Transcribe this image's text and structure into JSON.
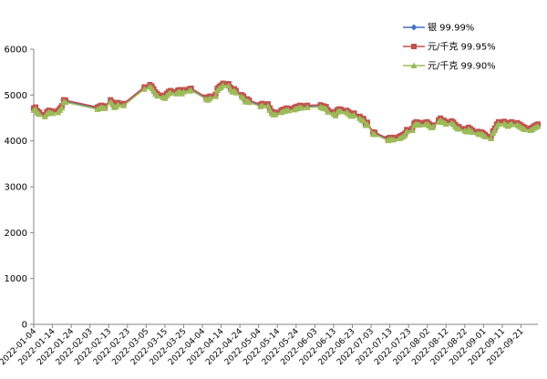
{
  "chart_data": {
    "type": "line",
    "ylim": [
      0,
      6000
    ],
    "y_ticks": [
      0,
      1000,
      2000,
      3000,
      4000,
      5000,
      6000
    ],
    "x_tick_labels": [
      "2022-01-04",
      "2022-01-14",
      "2022-01-24",
      "2022-02-03",
      "2022-02-13",
      "2022-02-23",
      "2022-03-05",
      "2022-03-15",
      "2022-03-25",
      "2022-04-04",
      "2022-04-14",
      "2022-04-24",
      "2022-05-04",
      "2022-05-14",
      "2022-05-24",
      "2022-06-03",
      "2022-06-13",
      "2022-06-23",
      "2022-07-03",
      "2022-07-13",
      "2022-07-23",
      "2022-08-02",
      "2022-08-12",
      "2022-08-22",
      "2022-09-01",
      "2022-09-11",
      "2022-09-21"
    ],
    "grid": false,
    "legend_position": "top-right",
    "x_start": "2022-01-04",
    "x_end": "2022-09-30",
    "points": [
      [
        "2022-01-04",
        4700
      ],
      [
        "2022-01-05",
        4720
      ],
      [
        "2022-01-06",
        4640
      ],
      [
        "2022-01-07",
        4610
      ],
      [
        "2022-01-10",
        4560
      ],
      [
        "2022-01-11",
        4620
      ],
      [
        "2022-01-12",
        4650
      ],
      [
        "2022-01-13",
        4640
      ],
      [
        "2022-01-14",
        4630
      ],
      [
        "2022-01-17",
        4650
      ],
      [
        "2022-01-18",
        4700
      ],
      [
        "2022-01-19",
        4750
      ],
      [
        "2022-01-20",
        4880
      ],
      [
        "2022-01-21",
        4870
      ],
      [
        "2022-02-07",
        4720
      ],
      [
        "2022-02-08",
        4740
      ],
      [
        "2022-02-09",
        4760
      ],
      [
        "2022-02-10",
        4750
      ],
      [
        "2022-02-11",
        4740
      ],
      [
        "2022-02-14",
        4880
      ],
      [
        "2022-02-15",
        4830
      ],
      [
        "2022-02-16",
        4760
      ],
      [
        "2022-02-17",
        4780
      ],
      [
        "2022-02-18",
        4820
      ],
      [
        "2022-02-21",
        4800
      ],
      [
        "2022-03-04",
        5160
      ],
      [
        "2022-03-07",
        5210
      ],
      [
        "2022-03-08",
        5180
      ],
      [
        "2022-03-09",
        5120
      ],
      [
        "2022-03-10",
        5050
      ],
      [
        "2022-03-11",
        5010
      ],
      [
        "2022-03-14",
        4980
      ],
      [
        "2022-03-15",
        4960
      ],
      [
        "2022-03-16",
        5020
      ],
      [
        "2022-03-17",
        5060
      ],
      [
        "2022-03-18",
        5080
      ],
      [
        "2022-03-21",
        5060
      ],
      [
        "2022-03-22",
        5090
      ],
      [
        "2022-03-23",
        5100
      ],
      [
        "2022-03-24",
        5060
      ],
      [
        "2022-03-25",
        5100
      ],
      [
        "2022-03-28",
        5120
      ],
      [
        "2022-03-29",
        5130
      ],
      [
        "2022-04-06",
        4940
      ],
      [
        "2022-04-07",
        4920
      ],
      [
        "2022-04-08",
        4960
      ],
      [
        "2022-04-11",
        5000
      ],
      [
        "2022-04-12",
        5130
      ],
      [
        "2022-04-13",
        5170
      ],
      [
        "2022-04-14",
        5200
      ],
      [
        "2022-04-15",
        5240
      ],
      [
        "2022-04-18",
        5230
      ],
      [
        "2022-04-19",
        5150
      ],
      [
        "2022-04-20",
        5100
      ],
      [
        "2022-04-21",
        5120
      ],
      [
        "2022-04-22",
        5080
      ],
      [
        "2022-04-25",
        4990
      ],
      [
        "2022-04-26",
        4960
      ],
      [
        "2022-04-27",
        4880
      ],
      [
        "2022-04-28",
        4900
      ],
      [
        "2022-04-29",
        4870
      ],
      [
        "2022-05-05",
        4780
      ],
      [
        "2022-05-06",
        4800
      ],
      [
        "2022-05-09",
        4790
      ],
      [
        "2022-05-10",
        4700
      ],
      [
        "2022-05-11",
        4630
      ],
      [
        "2022-05-12",
        4600
      ],
      [
        "2022-05-13",
        4610
      ],
      [
        "2022-05-16",
        4650
      ],
      [
        "2022-05-17",
        4670
      ],
      [
        "2022-05-18",
        4680
      ],
      [
        "2022-05-19",
        4700
      ],
      [
        "2022-05-20",
        4690
      ],
      [
        "2022-05-23",
        4710
      ],
      [
        "2022-05-24",
        4730
      ],
      [
        "2022-05-25",
        4740
      ],
      [
        "2022-05-26",
        4760
      ],
      [
        "2022-05-27",
        4750
      ],
      [
        "2022-05-30",
        4760
      ],
      [
        "2022-06-06",
        4770
      ],
      [
        "2022-06-07",
        4750
      ],
      [
        "2022-06-08",
        4740
      ],
      [
        "2022-06-09",
        4730
      ],
      [
        "2022-06-10",
        4660
      ],
      [
        "2022-06-13",
        4620
      ],
      [
        "2022-06-14",
        4580
      ],
      [
        "2022-06-15",
        4660
      ],
      [
        "2022-06-16",
        4680
      ],
      [
        "2022-06-17",
        4670
      ],
      [
        "2022-06-20",
        4650
      ],
      [
        "2022-06-21",
        4620
      ],
      [
        "2022-06-22",
        4580
      ],
      [
        "2022-06-23",
        4570
      ],
      [
        "2022-06-24",
        4590
      ],
      [
        "2022-06-27",
        4520
      ],
      [
        "2022-06-28",
        4480
      ],
      [
        "2022-06-29",
        4470
      ],
      [
        "2022-06-30",
        4370
      ],
      [
        "2022-07-01",
        4390
      ],
      [
        "2022-07-04",
        4180
      ],
      [
        "2022-07-05",
        4170
      ],
      [
        "2022-07-12",
        4040
      ],
      [
        "2022-07-13",
        4060
      ],
      [
        "2022-07-14",
        4050
      ],
      [
        "2022-07-15",
        4060
      ],
      [
        "2022-07-18",
        4080
      ],
      [
        "2022-07-19",
        4100
      ],
      [
        "2022-07-20",
        4120
      ],
      [
        "2022-07-21",
        4150
      ],
      [
        "2022-07-22",
        4230
      ],
      [
        "2022-07-25",
        4260
      ],
      [
        "2022-07-26",
        4370
      ],
      [
        "2022-07-27",
        4400
      ],
      [
        "2022-07-28",
        4390
      ],
      [
        "2022-07-29",
        4380
      ],
      [
        "2022-08-01",
        4390
      ],
      [
        "2022-08-02",
        4400
      ],
      [
        "2022-08-03",
        4360
      ],
      [
        "2022-08-04",
        4320
      ],
      [
        "2022-08-05",
        4330
      ],
      [
        "2022-08-08",
        4440
      ],
      [
        "2022-08-09",
        4480
      ],
      [
        "2022-08-10",
        4440
      ],
      [
        "2022-08-11",
        4430
      ],
      [
        "2022-08-12",
        4400
      ],
      [
        "2022-08-15",
        4420
      ],
      [
        "2022-08-16",
        4390
      ],
      [
        "2022-08-17",
        4340
      ],
      [
        "2022-08-18",
        4300
      ],
      [
        "2022-08-19",
        4290
      ],
      [
        "2022-08-22",
        4250
      ],
      [
        "2022-08-23",
        4230
      ],
      [
        "2022-08-24",
        4280
      ],
      [
        "2022-08-25",
        4250
      ],
      [
        "2022-08-26",
        4220
      ],
      [
        "2022-08-29",
        4190
      ],
      [
        "2022-08-30",
        4170
      ],
      [
        "2022-08-31",
        4180
      ],
      [
        "2022-09-01",
        4150
      ],
      [
        "2022-09-02",
        4120
      ],
      [
        "2022-09-05",
        4080
      ],
      [
        "2022-09-06",
        4200
      ],
      [
        "2022-09-07",
        4260
      ],
      [
        "2022-09-08",
        4350
      ],
      [
        "2022-09-09",
        4400
      ],
      [
        "2022-09-12",
        4410
      ],
      [
        "2022-09-13",
        4380
      ],
      [
        "2022-09-14",
        4350
      ],
      [
        "2022-09-15",
        4380
      ],
      [
        "2022-09-16",
        4400
      ],
      [
        "2022-09-19",
        4380
      ],
      [
        "2022-09-20",
        4350
      ],
      [
        "2022-09-21",
        4330
      ],
      [
        "2022-09-22",
        4300
      ],
      [
        "2022-09-23",
        4280
      ],
      [
        "2022-09-26",
        4260
      ],
      [
        "2022-09-27",
        4280
      ],
      [
        "2022-09-28",
        4310
      ],
      [
        "2022-09-29",
        4330
      ],
      [
        "2022-09-30",
        4350
      ]
    ],
    "series": [
      {
        "name": "银 99.99%",
        "color": "#4472C4",
        "marker": "diamond",
        "offset": 0
      },
      {
        "name": "元/千克 99.95%",
        "color": "#C0504D",
        "marker": "square",
        "offset": 15
      },
      {
        "name": "元/千克 99.90%",
        "color": "#9BBB59",
        "marker": "triangle",
        "offset": -28
      }
    ]
  }
}
